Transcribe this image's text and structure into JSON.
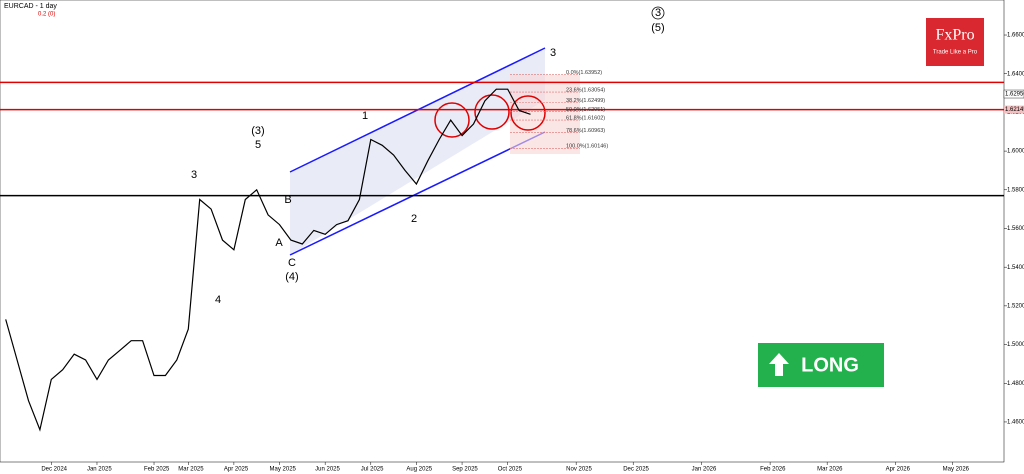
{
  "chart_data": {
    "type": "line",
    "title": "EURCAD - 1 day",
    "subtitle": "0.2 (0)",
    "categories": [
      null,
      null,
      null,
      null,
      "Dec 2024",
      null,
      null,
      null,
      "Jan 2025",
      null,
      null,
      null,
      null,
      "Feb 2025",
      null,
      null,
      "Mar 2025",
      null,
      null,
      null,
      "Apr 2025",
      null,
      null,
      null,
      "May 2025",
      null,
      null,
      null,
      "Jun 2025",
      null,
      null,
      null,
      "Jul 2025",
      null,
      null,
      null,
      "Aug 2025",
      null,
      null,
      null,
      "Sep 2025",
      null,
      null,
      null,
      "Oct 2025",
      null,
      null,
      null,
      null,
      null,
      "Nov 2025",
      null,
      null,
      null,
      null,
      "Dec 2025",
      null,
      null,
      null,
      null,
      null,
      "Jan 2026",
      null,
      null,
      null,
      null,
      null,
      "Feb 2026",
      null,
      null,
      null,
      null,
      "Mar 2026",
      null,
      null,
      null,
      null,
      null,
      "Apr 2026",
      null,
      null,
      null,
      null,
      "May 2026",
      null,
      null,
      null,
      null
    ],
    "series": [
      {
        "color": "#000000",
        "values": [
          1.513,
          1.492,
          1.471,
          1.456,
          1.482,
          1.487,
          1.495,
          1.492,
          1.482,
          1.492,
          1.497,
          1.502,
          1.502,
          1.484,
          1.484,
          1.492,
          1.508,
          1.575,
          1.57,
          1.554,
          1.549,
          1.575,
          1.58,
          1.567,
          1.562,
          1.554,
          1.552,
          1.559,
          1.557,
          1.562,
          1.564,
          1.575,
          1.606,
          1.603,
          1.598,
          1.59,
          1.583,
          1.595,
          1.606,
          1.616,
          1.608,
          1.614,
          1.626,
          1.632,
          1.632,
          1.621,
          1.619,
          null,
          null,
          null,
          null,
          null,
          null,
          null,
          null,
          null,
          null,
          null,
          null,
          null,
          null,
          null,
          null,
          null,
          null,
          null,
          null,
          null,
          null,
          null,
          null,
          null,
          null,
          null,
          null,
          null,
          null,
          null,
          null,
          null,
          null,
          null,
          null,
          null,
          null,
          null,
          null,
          null
        ]
      }
    ],
    "ylim": [
      1.4393,
      1.6781
    ],
    "yticks": [
      {
        "value": 1.46,
        "label": "1.46000"
      },
      {
        "value": 1.48,
        "label": "1.48000"
      },
      {
        "value": 1.5,
        "label": "1.50000"
      },
      {
        "value": 1.52,
        "label": "1.52000"
      },
      {
        "value": 1.54,
        "label": "1.54000"
      },
      {
        "value": 1.56,
        "label": "1.56000"
      },
      {
        "value": 1.58,
        "label": "1.58000"
      },
      {
        "value": 1.6,
        "label": "1.60000"
      },
      {
        "value": 1.62,
        "label": "1.62000"
      },
      {
        "value": 1.64,
        "label": "1.64000"
      },
      {
        "value": 1.66,
        "label": "1.66000"
      }
    ],
    "hlines": [
      {
        "value": 1.6355,
        "color": "#e00000"
      },
      {
        "value": 1.62145,
        "color": "#e00000",
        "label": "1.62145"
      },
      {
        "value": 1.577,
        "color": "#000000"
      }
    ],
    "last_price": {
      "value": 1.6295,
      "label": "1.62950"
    },
    "fib_levels": [
      {
        "value": 1.63952,
        "label": "0.0%(1.63952)"
      },
      {
        "value": 1.63054,
        "label": "23.6%(1.63054)"
      },
      {
        "value": 1.62499,
        "label": "38.2%(1.62499)"
      },
      {
        "value": 1.62051,
        "label": "50.0%(1.62051)"
      },
      {
        "value": 1.61602,
        "label": "61.8%(1.61602)"
      },
      {
        "value": 1.60963,
        "label": "78.6%(1.60963)"
      },
      {
        "value": 1.60146,
        "label": "100.0%(1.60146)"
      }
    ],
    "annotations": [
      "3",
      "4",
      "(3)",
      "5",
      "B",
      "A",
      "C",
      "(4)",
      "1",
      "2",
      "3",
      "3",
      "(5)"
    ],
    "signal": "LONG",
    "logo": {
      "name": "FxPro",
      "tagline": "Trade Like a Pro"
    }
  }
}
